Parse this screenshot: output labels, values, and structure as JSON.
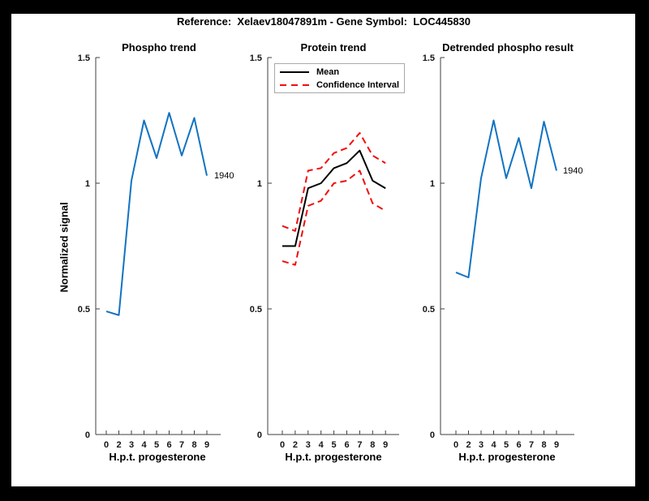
{
  "palette": {
    "frame": "#000000",
    "canvas": "#ffffff",
    "axis": "#3f3f3f",
    "blue": "#1173c2",
    "red": "#f20d0d",
    "black": "#000000"
  },
  "header": {
    "title": "Reference:  Xelaev18047891m - Gene Symbol:  LOC445830"
  },
  "chart_data": [
    {
      "type": "line",
      "title": "Phospho trend",
      "xlabel": "H.p.t. progesterone",
      "ylabel": "Normalized signal",
      "categories": [
        "0",
        "2",
        "3",
        "4",
        "5",
        "6",
        "7",
        "8",
        "9"
      ],
      "yticks": [
        0,
        0.5,
        1,
        1.5
      ],
      "ytick_labels": [
        "0",
        "0.5",
        "1",
        "1.5"
      ],
      "ylim": [
        0,
        1.5
      ],
      "grid": false,
      "legend": null,
      "end_label": "1940",
      "series": [
        {
          "name": "Phospho signal",
          "color_key": "blue",
          "style": "solid",
          "values": [
            0.49,
            0.475,
            1.01,
            1.25,
            1.1,
            1.28,
            1.11,
            1.26,
            1.03
          ]
        }
      ]
    },
    {
      "type": "line",
      "title": "Protein trend",
      "xlabel": "H.p.t. progesterone",
      "ylabel": "",
      "categories": [
        "0",
        "2",
        "3",
        "4",
        "5",
        "6",
        "7",
        "8",
        "9"
      ],
      "yticks": [
        0,
        0.5,
        1,
        1.5
      ],
      "ytick_labels": [
        "0",
        "0.5",
        "1",
        "1.5"
      ],
      "ylim": [
        0,
        1.5
      ],
      "grid": false,
      "legend": {
        "position": "top-left",
        "entries": [
          {
            "label": "Mean",
            "style": "solid",
            "color_key": "black"
          },
          {
            "label": "Confidence Interval",
            "style": "dashed",
            "color_key": "red"
          }
        ]
      },
      "end_label": "",
      "series": [
        {
          "name": "Mean",
          "color_key": "black",
          "style": "solid",
          "values": [
            0.75,
            0.75,
            0.98,
            1.0,
            1.06,
            1.08,
            1.13,
            1.01,
            0.98
          ]
        },
        {
          "name": "Confidence Interval upper",
          "color_key": "red",
          "style": "dashed",
          "values": [
            0.83,
            0.81,
            1.05,
            1.06,
            1.12,
            1.14,
            1.2,
            1.11,
            1.08
          ]
        },
        {
          "name": "Confidence Interval lower",
          "color_key": "red",
          "style": "dashed",
          "values": [
            0.69,
            0.675,
            0.91,
            0.93,
            1.0,
            1.01,
            1.05,
            0.92,
            0.89
          ]
        }
      ]
    },
    {
      "type": "line",
      "title": "Detrended phospho result",
      "xlabel": "H.p.t. progesterone",
      "ylabel": "",
      "categories": [
        "0",
        "2",
        "3",
        "4",
        "5",
        "6",
        "7",
        "8",
        "9"
      ],
      "yticks": [
        0,
        0.5,
        1,
        1.5
      ],
      "ytick_labels": [
        "0",
        "0.5",
        "1",
        "1.5"
      ],
      "ylim": [
        0,
        1.5
      ],
      "grid": false,
      "legend": null,
      "end_label": "1940",
      "series": [
        {
          "name": "Detrended phospho signal",
          "color_key": "blue",
          "style": "solid",
          "values": [
            0.645,
            0.625,
            1.02,
            1.25,
            1.02,
            1.18,
            0.98,
            1.245,
            1.05
          ]
        }
      ]
    }
  ]
}
